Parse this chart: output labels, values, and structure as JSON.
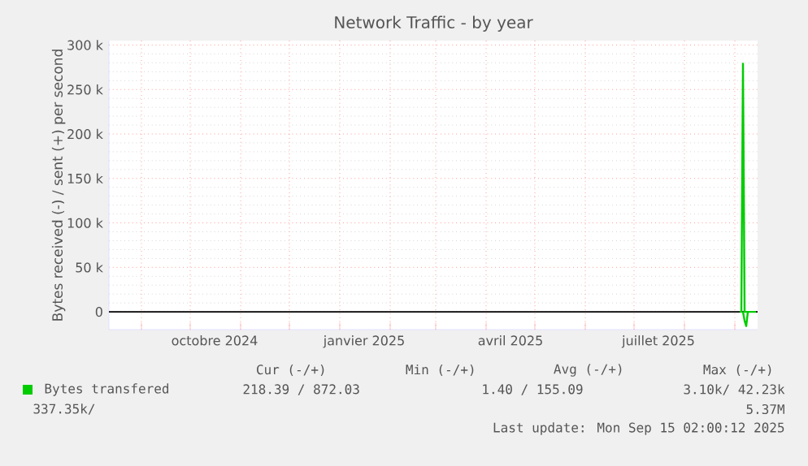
{
  "chart_data": {
    "type": "line",
    "title": "Network Traffic - by year",
    "ylabel": "Bytes received (-) / sent (+) per second",
    "x": [
      "2025-09-04",
      "2025-09-05",
      "2025-09-06",
      "2025-09-07",
      "2025-09-08",
      "2025-09-09",
      "2025-09-10",
      "2025-09-11",
      "2025-09-12",
      "2025-09-13",
      "2025-09-14"
    ],
    "series": [
      {
        "name": "Bytes transfered",
        "color": "#00cc00",
        "values": [
          0,
          0,
          279000,
          0,
          0,
          0,
          0,
          0,
          0,
          0,
          0
        ]
      },
      {
        "color": "#00cc00",
        "x": [
          "2025-09-06",
          "2025-09-07",
          "2025-09-08",
          "2025-09-09"
        ],
        "values": [
          0,
          -10000,
          -16000,
          0
        ]
      }
    ],
    "xlim": [
      "2024-08-12",
      "2025-09-15"
    ],
    "xticks": [
      {
        "value": "2024-09-01",
        "label": null
      },
      {
        "value": "2024-10-01",
        "label": null
      },
      {
        "value": "2024-11-01",
        "label": null
      },
      {
        "value": "2024-12-01",
        "label": null
      },
      {
        "value": "2025-01-01",
        "label": null
      },
      {
        "value": "2025-02-01",
        "label": null
      },
      {
        "value": "2025-03-01",
        "label": null
      },
      {
        "value": "2025-04-01",
        "label": null
      },
      {
        "value": "2025-05-01",
        "label": null
      },
      {
        "value": "2025-06-01",
        "label": null
      },
      {
        "value": "2025-07-01",
        "label": null
      },
      {
        "value": "2025-08-01",
        "label": null
      },
      {
        "value": "2025-09-01",
        "label": null
      },
      {
        "value": "2024-10-16",
        "label": "octobre 2024"
      },
      {
        "value": "2025-01-16",
        "label": "janvier 2025"
      },
      {
        "value": "2025-04-16",
        "label": "avril 2025"
      },
      {
        "value": "2025-07-16",
        "label": "juillet 2025"
      }
    ],
    "ylim": [
      -20000,
      305000
    ],
    "yticks": [
      0,
      {
        "value": 50000,
        "label": "50 k"
      },
      {
        "value": 100000,
        "label": "100 k"
      },
      {
        "value": 150000,
        "label": "150 k"
      },
      {
        "value": 200000,
        "label": "200 k"
      },
      {
        "value": 250000,
        "label": "250 k"
      },
      {
        "value": 300000,
        "label": "300 k"
      }
    ],
    "grid": true,
    "legend": "bottom",
    "marker": "none",
    "line_style": "solid",
    "ref_lines": [
      {
        "axis": "y",
        "value": 0,
        "color": "#000000"
      }
    ],
    "annotations": [
      "Cur (-/+)",
      "Min (-/+)",
      "Avg (-/+)",
      "Max (-/+)",
      "218.39 / 872.03",
      "1.40 / 155.09",
      "3.10k/  42.23k",
      "337.35k/",
      "5.37M",
      "Last update: Mon Sep 15 02:00:12 2025"
    ]
  }
}
